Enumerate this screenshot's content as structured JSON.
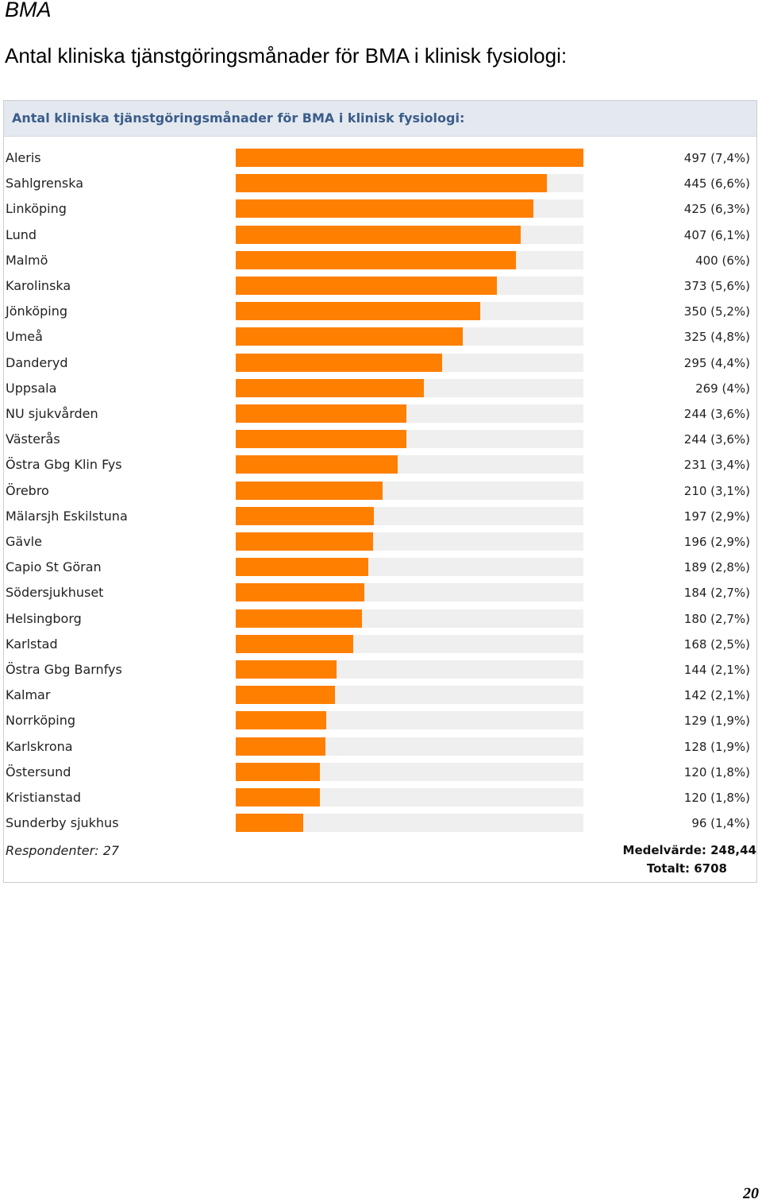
{
  "header": {
    "doc_label": "BMA",
    "title": "Antal kliniska tjänstgöringsmånader för BMA i klinisk fysiologi:"
  },
  "panel": {
    "title": "Antal kliniska tjänstgöringsmånader för BMA i klinisk fysiologi:"
  },
  "colors": {
    "bar": "#ff7f00",
    "track": "#efefef",
    "panel_header": "#e4e9f0",
    "panel_title": "#3b5d8a"
  },
  "chart_data": {
    "type": "bar",
    "orientation": "horizontal",
    "xlim": [
      0,
      497
    ],
    "grid": false,
    "categories": [
      "Aleris",
      "Sahlgrenska",
      "Linköping",
      "Lund",
      "Malmö",
      "Karolinska",
      "Jönköping",
      "Umeå",
      "Danderyd",
      "Uppsala",
      "NU sjukvården",
      "Västerås",
      "Östra Gbg Klin Fys",
      "Örebro",
      "Mälarsjh Eskilstuna",
      "Gävle",
      "Capio St Göran",
      "Södersjukhuset",
      "Helsingborg",
      "Karlstad",
      "Östra Gbg Barnfys",
      "Kalmar",
      "Norrköping",
      "Karlskrona",
      "Östersund",
      "Kristianstad",
      "Sunderby sjukhus"
    ],
    "values": [
      497,
      445,
      425,
      407,
      400,
      373,
      350,
      325,
      295,
      269,
      244,
      244,
      231,
      210,
      197,
      196,
      189,
      184,
      180,
      168,
      144,
      142,
      129,
      128,
      120,
      120,
      96
    ],
    "value_labels": [
      "497 (7,4%)",
      "445 (6,6%)",
      "425 (6,3%)",
      "407 (6,1%)",
      "400 (6%)",
      "373 (5,6%)",
      "350 (5,2%)",
      "325 (4,8%)",
      "295 (4,4%)",
      "269 (4%)",
      "244 (3,6%)",
      "244 (3,6%)",
      "231 (3,4%)",
      "210 (3,1%)",
      "197 (2,9%)",
      "196 (2,9%)",
      "189 (2,8%)",
      "184 (2,7%)",
      "180 (2,7%)",
      "168 (2,5%)",
      "144 (2,1%)",
      "142 (2,1%)",
      "129 (1,9%)",
      "128 (1,9%)",
      "120 (1,8%)",
      "120 (1,8%)",
      "96 (1,4%)"
    ]
  },
  "footer": {
    "respondents": "Respondenter: 27",
    "average": "Medelvärde: 248,44",
    "total": "Totalt: 6708"
  },
  "page_number": "20"
}
